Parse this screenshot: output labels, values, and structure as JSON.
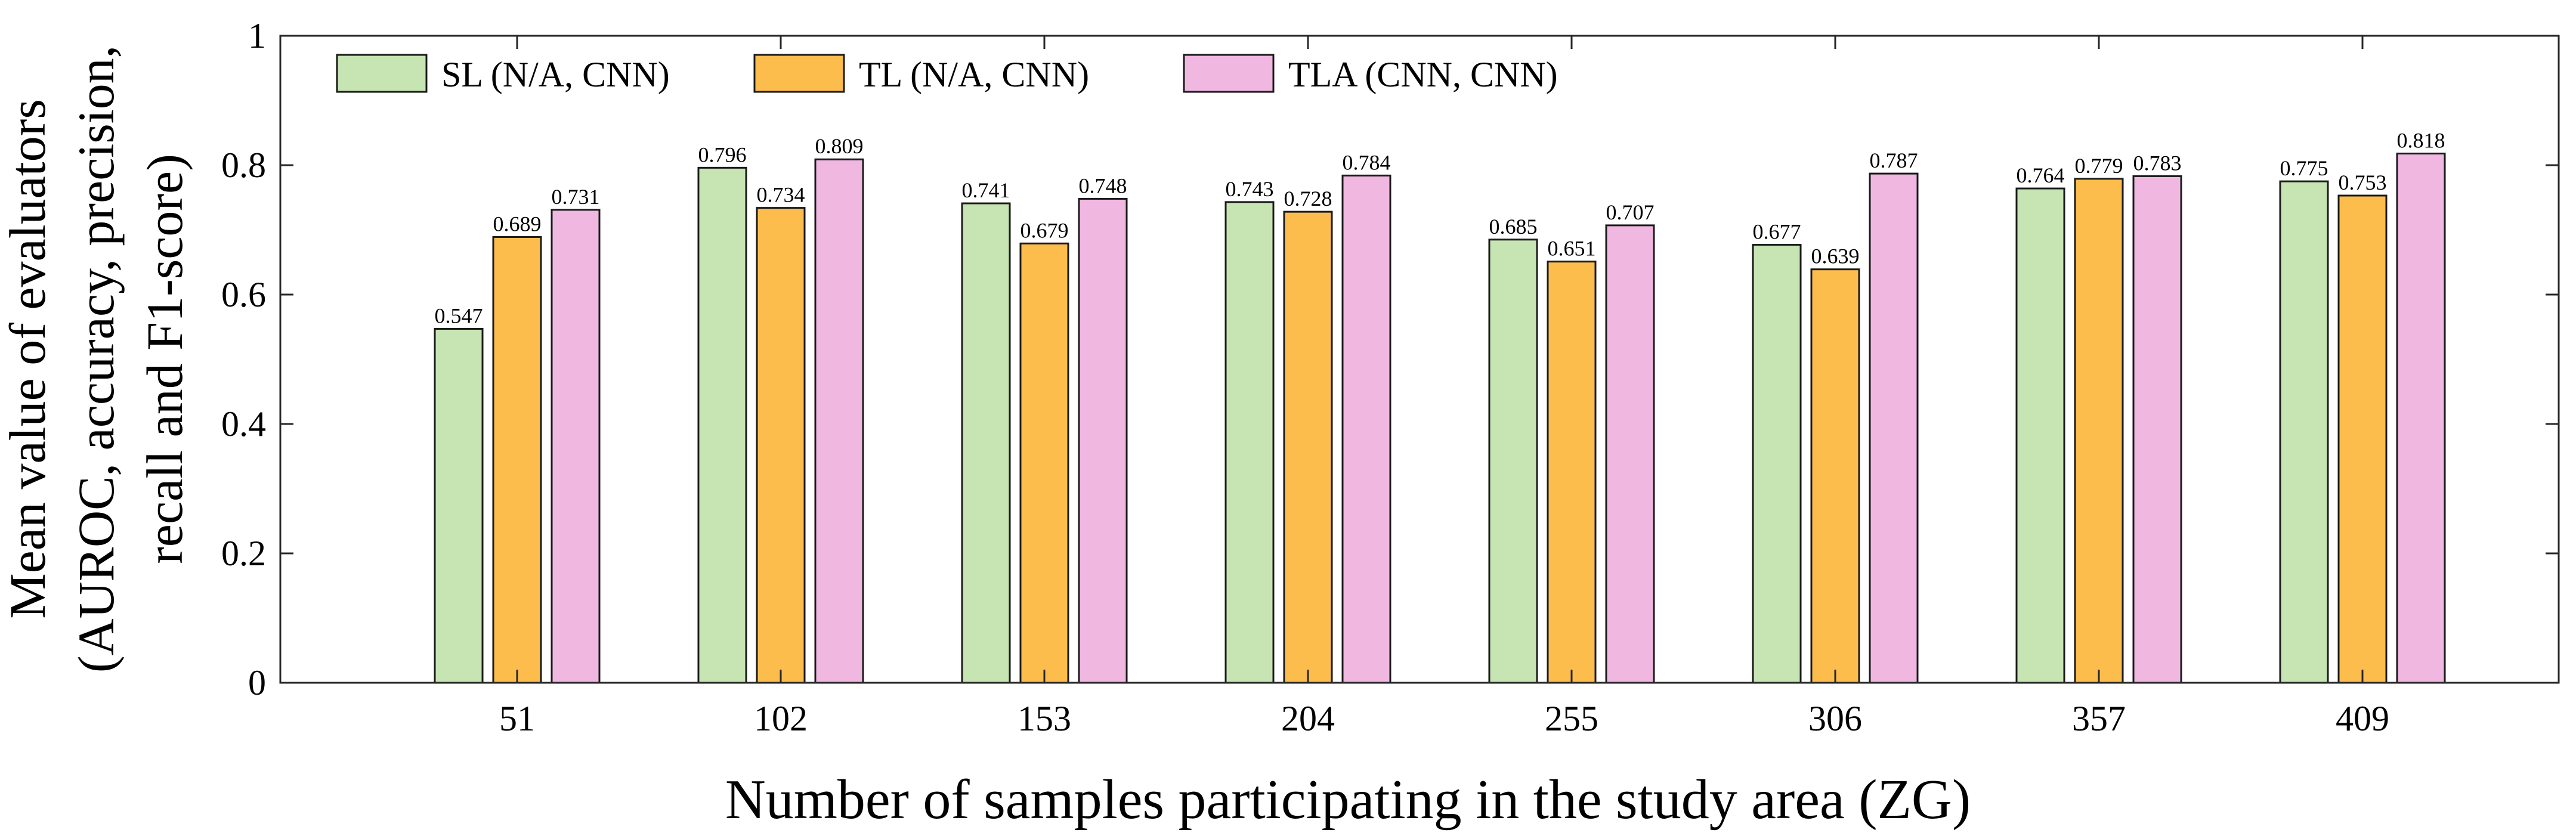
{
  "chart_data": {
    "type": "bar",
    "xlabel": "Number of samples participating in the study area (ZG)",
    "ylabel_lines": [
      "Mean value of evaluators",
      "(AUROC, accuracy, precision,",
      "recall and F1-score)"
    ],
    "categories": [
      "51",
      "102",
      "153",
      "204",
      "255",
      "306",
      "357",
      "409"
    ],
    "ylim": [
      0,
      1
    ],
    "yticks": [
      0,
      0.2,
      0.4,
      0.6,
      0.8,
      1
    ],
    "ytick_labels": [
      "0",
      "0.2",
      "0.4",
      "0.6",
      "0.8",
      "1"
    ],
    "legend_position": "top-left",
    "grid": false,
    "series": [
      {
        "name": "SL (N/A, CNN)",
        "color": "#c6e5b3",
        "values": [
          0.547,
          0.796,
          0.741,
          0.743,
          0.685,
          0.677,
          0.764,
          0.775
        ],
        "labels": [
          "0.547",
          "0.796",
          "0.741",
          "0.743",
          "0.685",
          "0.677",
          "0.764",
          "0.775"
        ]
      },
      {
        "name": "TL (N/A, CNN)",
        "color": "#fdbd4d",
        "values": [
          0.689,
          0.734,
          0.679,
          0.728,
          0.651,
          0.639,
          0.779,
          0.753
        ],
        "labels": [
          "0.689",
          "0.734",
          "0.679",
          "0.728",
          "0.651",
          "0.639",
          "0.779",
          "0.753"
        ]
      },
      {
        "name": "TLA (CNN, CNN)",
        "color": "#f0b7e1",
        "values": [
          0.731,
          0.809,
          0.748,
          0.784,
          0.707,
          0.787,
          0.783,
          0.818
        ],
        "labels": [
          "0.731",
          "0.809",
          "0.748",
          "0.784",
          "0.707",
          "0.787",
          "0.783",
          "0.818"
        ]
      }
    ]
  }
}
